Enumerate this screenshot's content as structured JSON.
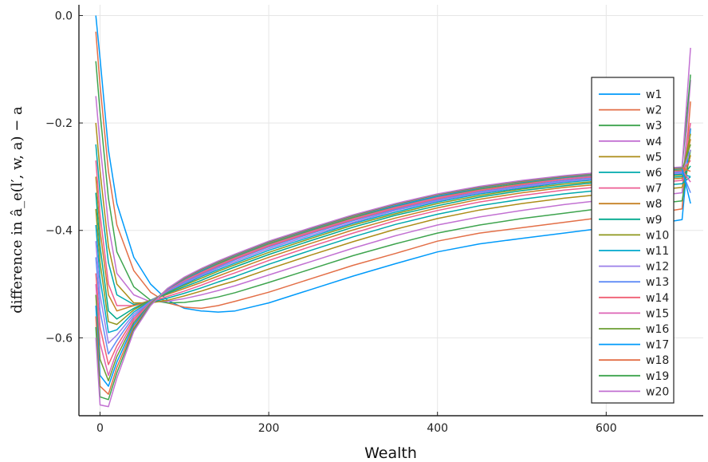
{
  "chart_data": {
    "type": "line",
    "xlabel": "Wealth",
    "ylabel": "difference in â_e(l′, w, a) − a",
    "xlim": [
      -25,
      715
    ],
    "ylim": [
      -0.745,
      0.02
    ],
    "xticks": [
      0,
      200,
      400,
      600
    ],
    "xtick_labels": [
      "0",
      "200",
      "400",
      "600"
    ],
    "yticks": [
      0.0,
      -0.2,
      -0.4,
      -0.6
    ],
    "ytick_labels": [
      "0.0",
      "−0.2",
      "−0.4",
      "−0.6"
    ],
    "grid": true,
    "legend_position": "right",
    "x": [
      -5,
      0,
      10,
      20,
      40,
      60,
      80,
      100,
      120,
      140,
      160,
      200,
      250,
      300,
      350,
      400,
      450,
      500,
      550,
      600,
      650,
      690,
      700
    ],
    "series": [
      {
        "name": "w1",
        "color": "#009AFA",
        "values": [
          0.0,
          -0.08,
          -0.25,
          -0.35,
          -0.45,
          -0.5,
          -0.53,
          -0.545,
          -0.55,
          -0.552,
          -0.55,
          -0.535,
          -0.51,
          -0.485,
          -0.462,
          -0.44,
          -0.425,
          -0.415,
          -0.405,
          -0.395,
          -0.39,
          -0.38,
          -0.21
        ]
      },
      {
        "name": "w2",
        "color": "#E36F47",
        "values": [
          -0.03,
          -0.13,
          -0.29,
          -0.39,
          -0.475,
          -0.515,
          -0.535,
          -0.543,
          -0.545,
          -0.54,
          -0.532,
          -0.515,
          -0.49,
          -0.465,
          -0.443,
          -0.42,
          -0.405,
          -0.395,
          -0.385,
          -0.375,
          -0.37,
          -0.36,
          -0.16
        ]
      },
      {
        "name": "w3",
        "color": "#3EA44E",
        "values": [
          -0.085,
          -0.18,
          -0.34,
          -0.44,
          -0.505,
          -0.53,
          -0.535,
          -0.534,
          -0.53,
          -0.524,
          -0.516,
          -0.497,
          -0.472,
          -0.447,
          -0.425,
          -0.405,
          -0.39,
          -0.378,
          -0.368,
          -0.358,
          -0.352,
          -0.345,
          -0.25
        ]
      },
      {
        "name": "w4",
        "color": "#C271D2",
        "values": [
          -0.15,
          -0.24,
          -0.39,
          -0.48,
          -0.52,
          -0.533,
          -0.532,
          -0.527,
          -0.52,
          -0.512,
          -0.503,
          -0.483,
          -0.458,
          -0.433,
          -0.41,
          -0.39,
          -0.375,
          -0.363,
          -0.352,
          -0.343,
          -0.337,
          -0.33,
          -0.12
        ]
      },
      {
        "name": "w5",
        "color": "#AC8D18",
        "values": [
          -0.2,
          -0.29,
          -0.43,
          -0.5,
          -0.535,
          -0.535,
          -0.53,
          -0.522,
          -0.513,
          -0.503,
          -0.494,
          -0.472,
          -0.446,
          -0.421,
          -0.398,
          -0.378,
          -0.362,
          -0.35,
          -0.34,
          -0.332,
          -0.326,
          -0.32,
          -0.26
        ]
      },
      {
        "name": "w6",
        "color": "#00A9AD",
        "values": [
          -0.24,
          -0.33,
          -0.46,
          -0.52,
          -0.538,
          -0.534,
          -0.526,
          -0.517,
          -0.507,
          -0.496,
          -0.486,
          -0.463,
          -0.437,
          -0.412,
          -0.389,
          -0.37,
          -0.354,
          -0.342,
          -0.332,
          -0.324,
          -0.318,
          -0.313,
          -0.3
        ]
      },
      {
        "name": "w7",
        "color": "#ED5E93",
        "values": [
          -0.27,
          -0.37,
          -0.5,
          -0.54,
          -0.54,
          -0.533,
          -0.523,
          -0.513,
          -0.502,
          -0.49,
          -0.479,
          -0.456,
          -0.43,
          -0.405,
          -0.382,
          -0.363,
          -0.347,
          -0.335,
          -0.325,
          -0.318,
          -0.312,
          -0.307,
          -0.2
        ]
      },
      {
        "name": "w8",
        "color": "#C68225",
        "values": [
          -0.3,
          -0.4,
          -0.52,
          -0.55,
          -0.54,
          -0.53,
          -0.519,
          -0.508,
          -0.497,
          -0.485,
          -0.473,
          -0.45,
          -0.424,
          -0.399,
          -0.377,
          -0.358,
          -0.342,
          -0.33,
          -0.32,
          -0.313,
          -0.307,
          -0.303,
          -0.23
        ]
      },
      {
        "name": "w9",
        "color": "#00A98D",
        "values": [
          -0.33,
          -0.43,
          -0.55,
          -0.565,
          -0.545,
          -0.53,
          -0.517,
          -0.505,
          -0.493,
          -0.48,
          -0.468,
          -0.445,
          -0.419,
          -0.394,
          -0.372,
          -0.354,
          -0.338,
          -0.326,
          -0.317,
          -0.309,
          -0.304,
          -0.3,
          -0.28
        ]
      },
      {
        "name": "w10",
        "color": "#8E971E",
        "values": [
          -0.36,
          -0.46,
          -0.57,
          -0.575,
          -0.548,
          -0.53,
          -0.515,
          -0.502,
          -0.489,
          -0.476,
          -0.464,
          -0.441,
          -0.415,
          -0.39,
          -0.369,
          -0.35,
          -0.335,
          -0.323,
          -0.314,
          -0.307,
          -0.301,
          -0.297,
          -0.22
        ]
      },
      {
        "name": "w11",
        "color": "#00A8CB",
        "values": [
          -0.39,
          -0.49,
          -0.59,
          -0.585,
          -0.552,
          -0.531,
          -0.514,
          -0.5,
          -0.486,
          -0.473,
          -0.461,
          -0.437,
          -0.412,
          -0.387,
          -0.366,
          -0.347,
          -0.332,
          -0.321,
          -0.311,
          -0.304,
          -0.299,
          -0.295,
          -0.3
        ]
      },
      {
        "name": "w12",
        "color": "#9B7FE8",
        "values": [
          -0.42,
          -0.52,
          -0.61,
          -0.595,
          -0.556,
          -0.532,
          -0.513,
          -0.498,
          -0.484,
          -0.47,
          -0.458,
          -0.434,
          -0.409,
          -0.385,
          -0.363,
          -0.345,
          -0.33,
          -0.319,
          -0.309,
          -0.302,
          -0.297,
          -0.293,
          -0.25
        ]
      },
      {
        "name": "w13",
        "color": "#608CF6",
        "values": [
          -0.45,
          -0.55,
          -0.63,
          -0.605,
          -0.56,
          -0.533,
          -0.512,
          -0.496,
          -0.482,
          -0.468,
          -0.455,
          -0.431,
          -0.406,
          -0.382,
          -0.361,
          -0.343,
          -0.328,
          -0.317,
          -0.307,
          -0.3,
          -0.295,
          -0.291,
          -0.33
        ]
      },
      {
        "name": "w14",
        "color": "#F05F73",
        "values": [
          -0.48,
          -0.58,
          -0.65,
          -0.615,
          -0.564,
          -0.534,
          -0.511,
          -0.494,
          -0.48,
          -0.466,
          -0.453,
          -0.429,
          -0.404,
          -0.38,
          -0.359,
          -0.341,
          -0.326,
          -0.315,
          -0.305,
          -0.298,
          -0.293,
          -0.289,
          -0.27
        ]
      },
      {
        "name": "w15",
        "color": "#DD64B5",
        "values": [
          -0.5,
          -0.61,
          -0.67,
          -0.625,
          -0.568,
          -0.535,
          -0.51,
          -0.493,
          -0.478,
          -0.464,
          -0.451,
          -0.427,
          -0.402,
          -0.378,
          -0.357,
          -0.339,
          -0.324,
          -0.313,
          -0.304,
          -0.297,
          -0.292,
          -0.288,
          -0.31
        ]
      },
      {
        "name": "w16",
        "color": "#6B9E32",
        "values": [
          -0.52,
          -0.64,
          -0.68,
          -0.635,
          -0.572,
          -0.536,
          -0.509,
          -0.491,
          -0.476,
          -0.462,
          -0.449,
          -0.425,
          -0.4,
          -0.376,
          -0.355,
          -0.337,
          -0.323,
          -0.312,
          -0.302,
          -0.295,
          -0.29,
          -0.287,
          -0.24
        ]
      },
      {
        "name": "w17",
        "color": "#009AFA",
        "values": [
          -0.54,
          -0.67,
          -0.69,
          -0.645,
          -0.576,
          -0.537,
          -0.509,
          -0.49,
          -0.475,
          -0.46,
          -0.447,
          -0.423,
          -0.398,
          -0.374,
          -0.354,
          -0.336,
          -0.321,
          -0.31,
          -0.301,
          -0.294,
          -0.289,
          -0.285,
          -0.35
        ]
      },
      {
        "name": "w18",
        "color": "#E36F47",
        "values": [
          -0.56,
          -0.69,
          -0.705,
          -0.655,
          -0.58,
          -0.538,
          -0.508,
          -0.489,
          -0.473,
          -0.459,
          -0.446,
          -0.422,
          -0.397,
          -0.373,
          -0.352,
          -0.334,
          -0.32,
          -0.309,
          -0.3,
          -0.293,
          -0.288,
          -0.284,
          -0.29
        ]
      },
      {
        "name": "w19",
        "color": "#3EA44E",
        "values": [
          -0.58,
          -0.71,
          -0.715,
          -0.665,
          -0.584,
          -0.539,
          -0.508,
          -0.488,
          -0.472,
          -0.458,
          -0.445,
          -0.421,
          -0.396,
          -0.372,
          -0.351,
          -0.333,
          -0.319,
          -0.308,
          -0.299,
          -0.292,
          -0.287,
          -0.283,
          -0.11
        ]
      },
      {
        "name": "w20",
        "color": "#C271D2",
        "values": [
          -0.6,
          -0.725,
          -0.728,
          -0.675,
          -0.588,
          -0.54,
          -0.508,
          -0.487,
          -0.471,
          -0.457,
          -0.444,
          -0.42,
          -0.395,
          -0.371,
          -0.35,
          -0.332,
          -0.318,
          -0.307,
          -0.298,
          -0.291,
          -0.286,
          -0.282,
          -0.06
        ]
      }
    ]
  }
}
